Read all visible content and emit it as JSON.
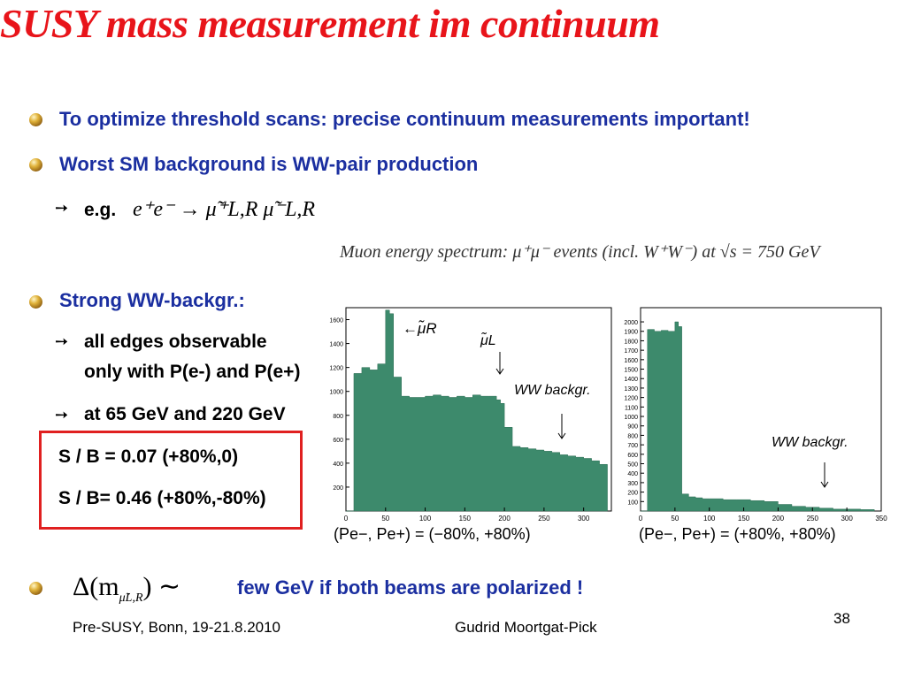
{
  "title": "SUSY mass measurement im continuum",
  "bullets": [
    "To optimize threshold scans: precise continuum measurements important!",
    "Worst SM background is WW-pair production",
    "Strong WW-backgr.:"
  ],
  "eg_label": "e.g.",
  "eg_formula": "e⁺e⁻ → μ̃⁺L,R μ̃⁻L,R",
  "spectrum_caption": "Muon energy spectrum: μ⁺μ⁻ events (incl. W⁺W⁻) at √s = 750 GeV",
  "sub_items": {
    "edges_line1": "all edges observable",
    "edges_line2": "only with P(e-) and P(e+)",
    "at_energies": "at 65 GeV and 220 GeV"
  },
  "sb_box": {
    "line1": "S / B = 0.07 (+80%,0)",
    "line2": "S / B= 0.46 (+80%,-80%)"
  },
  "last_bullet": {
    "formula": "Δ(m",
    "formula_sub": "μ̃L,R",
    "formula_tail": ") ∼",
    "text": "few GeV if both beams are polarized !"
  },
  "footer": {
    "left": "Pre-SUSY, Bonn, 19-21.8.2010",
    "center": "Gudrid Moortgat-Pick",
    "page": "38"
  },
  "colors": {
    "title": "#e8141a",
    "bullet_text": "#1b2fa0",
    "hist_fill": "#3d8a6c",
    "box": "#e02020"
  },
  "chart_data": [
    {
      "type": "bar",
      "x": [
        0,
        10,
        20,
        30,
        40,
        50,
        55,
        60,
        70,
        80,
        90,
        100,
        110,
        120,
        130,
        140,
        150,
        160,
        170,
        180,
        190,
        195,
        200,
        210,
        220,
        230,
        240,
        250,
        260,
        270,
        280,
        290,
        300,
        310,
        320,
        330
      ],
      "values": [
        0,
        1150,
        1200,
        1180,
        1230,
        1680,
        1650,
        1120,
        960,
        950,
        950,
        960,
        970,
        960,
        950,
        960,
        950,
        970,
        960,
        960,
        930,
        900,
        700,
        540,
        530,
        520,
        510,
        500,
        490,
        470,
        460,
        450,
        440,
        420,
        390,
        0
      ],
      "xlim": [
        0,
        335
      ],
      "ylim": [
        0,
        1700
      ],
      "xticks": [
        "0",
        "50",
        "100",
        "150",
        "200",
        "250",
        "300"
      ],
      "yticks": [
        "200",
        "400",
        "600",
        "800",
        "1000",
        "1200",
        "1400",
        "1600"
      ],
      "annotations": [
        "←μ̃R",
        "μ̃L",
        "WW backgr."
      ],
      "xlabel": "(Pe−, Pe+) = (−80%, +80%)"
    },
    {
      "type": "bar",
      "x": [
        0,
        10,
        20,
        30,
        40,
        50,
        55,
        60,
        70,
        80,
        90,
        100,
        120,
        140,
        160,
        180,
        200,
        220,
        240,
        260,
        280,
        300,
        320,
        340
      ],
      "values": [
        0,
        1920,
        1900,
        1910,
        1900,
        2000,
        1950,
        180,
        150,
        140,
        130,
        130,
        120,
        120,
        110,
        100,
        70,
        50,
        40,
        30,
        20,
        20,
        15,
        0
      ],
      "xlim": [
        0,
        350
      ],
      "ylim": [
        0,
        2150
      ],
      "xticks": [
        "0",
        "50",
        "100",
        "150",
        "200",
        "250",
        "300",
        "350"
      ],
      "yticks": [
        "100",
        "200",
        "300",
        "400",
        "500",
        "600",
        "700",
        "800",
        "900",
        "1000",
        "1100",
        "1200",
        "1300",
        "1400",
        "1500",
        "1600",
        "1700",
        "1800",
        "1900",
        "2000"
      ],
      "annotations": [
        "WW backgr."
      ],
      "xlabel": "(Pe−, Pe+) = (+80%, +80%)"
    }
  ]
}
